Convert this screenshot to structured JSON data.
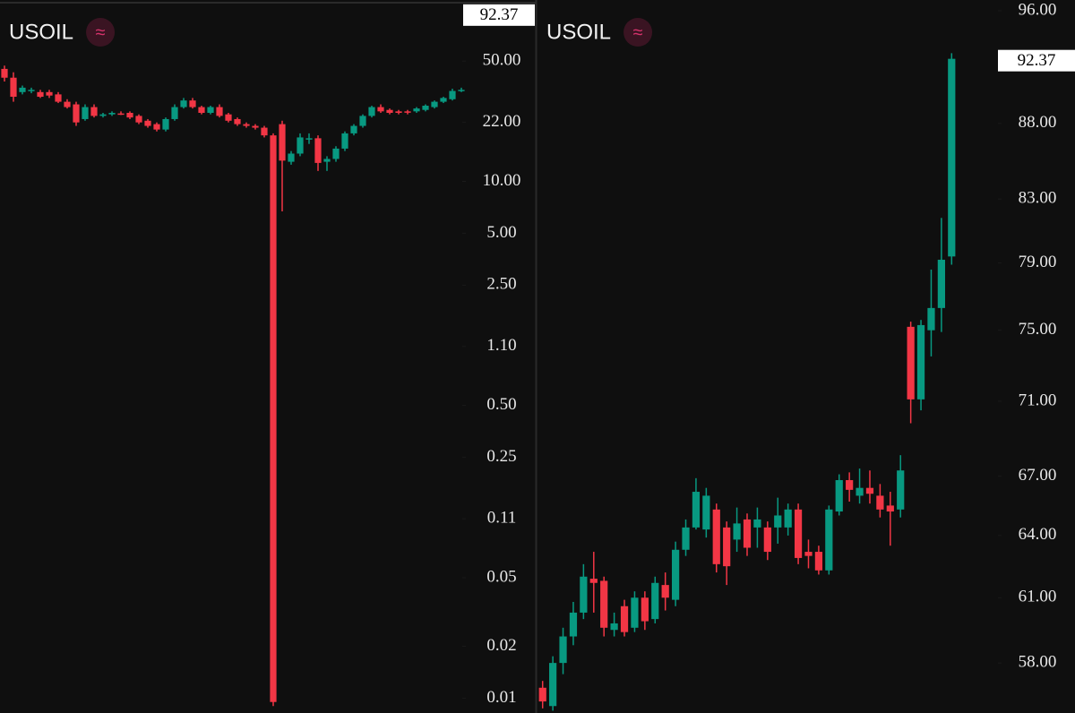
{
  "chart_data": [
    {
      "type": "candlestick",
      "title": "USOIL",
      "icon": "≈",
      "log_scale": true,
      "last_price": 92.37,
      "ylim": [
        0.0082,
        113
      ],
      "yticks": [
        {
          "value": 50,
          "label": "50.00"
        },
        {
          "value": 22,
          "label": "22.00"
        },
        {
          "value": 10,
          "label": "10.00"
        },
        {
          "value": 5,
          "label": "5.00"
        },
        {
          "value": 2.5,
          "label": "2.50"
        },
        {
          "value": 1.1,
          "label": "1.10"
        },
        {
          "value": 0.5,
          "label": "0.50"
        },
        {
          "value": 0.25,
          "label": "0.25"
        },
        {
          "value": 0.11,
          "label": "0.11"
        },
        {
          "value": 0.05,
          "label": "0.05"
        },
        {
          "value": 0.02,
          "label": "0.02"
        },
        {
          "value": 0.01,
          "label": "0.01"
        }
      ],
      "up_color": "#089981",
      "down_color": "#f23645",
      "open": [
        45,
        40,
        33,
        33.5,
        33,
        33,
        32,
        29,
        28,
        23,
        27,
        24,
        24.5,
        24.8,
        25,
        24,
        22.5,
        21.5,
        20,
        23,
        27,
        29.5,
        27,
        25,
        27,
        24.5,
        23,
        21.5,
        21,
        20.5,
        18.5,
        21.5,
        13,
        14.5,
        17.5,
        17.8,
        13,
        13.5,
        15.5,
        19,
        21,
        24,
        27,
        26,
        25.5,
        25.5,
        25.5,
        26,
        27,
        29,
        30,
        33.5
      ],
      "high": [
        47,
        43,
        36,
        35,
        34,
        34,
        33,
        30,
        29,
        28,
        28,
        25,
        25.5,
        25.5,
        25.5,
        24.5,
        23,
        22,
        23.5,
        28,
        30.5,
        30.5,
        27.5,
        27.5,
        28,
        25,
        23.5,
        22,
        21.5,
        21,
        19,
        22.5,
        15,
        19,
        19,
        18.5,
        14,
        16,
        19.5,
        21.5,
        24.5,
        27.5,
        28,
        26.5,
        26,
        26,
        27,
        28,
        29.5,
        31,
        34.5,
        35
      ],
      "low": [
        38,
        29,
        32,
        32.5,
        30.5,
        30.5,
        28.5,
        26.5,
        21,
        22.5,
        23.5,
        23.5,
        24,
        24.3,
        23,
        21.5,
        20.5,
        19.5,
        19.5,
        22.5,
        26.5,
        26.5,
        24.5,
        24.5,
        23.5,
        22,
        21,
        20.5,
        20,
        18,
        0.009,
        6.7,
        12.5,
        14,
        16.5,
        11.5,
        11.5,
        13,
        15,
        18.5,
        20.5,
        23.5,
        25,
        24.5,
        24.5,
        24.5,
        25,
        25.5,
        26.5,
        28.5,
        29.5,
        33
      ],
      "close": [
        40,
        31,
        35,
        34,
        31,
        31.5,
        29,
        27,
        22,
        27,
        24,
        24.5,
        25,
        24.6,
        23.5,
        22,
        21,
        20,
        23,
        27,
        29.5,
        27,
        25,
        27,
        24,
        22.5,
        21.5,
        21,
        20.5,
        18.5,
        0.0095,
        13.2,
        14.5,
        18,
        17.8,
        12.8,
        13.5,
        15.5,
        19,
        21,
        24,
        27,
        25.5,
        25,
        25,
        25.2,
        26.5,
        27.5,
        29,
        30.5,
        33.5,
        34
      ]
    },
    {
      "type": "candlestick",
      "title": "USOIL",
      "icon": "≈",
      "log_scale": true,
      "last_price": 92.37,
      "ylim": [
        55.8,
        96.8
      ],
      "yticks": [
        {
          "value": 96,
          "label": "96.00"
        },
        {
          "value": 88,
          "label": "88.00"
        },
        {
          "value": 83,
          "label": "83.00"
        },
        {
          "value": 79,
          "label": "79.00"
        },
        {
          "value": 75,
          "label": "75.00"
        },
        {
          "value": 71,
          "label": "71.00"
        },
        {
          "value": 67,
          "label": "67.00"
        },
        {
          "value": 64,
          "label": "64.00"
        },
        {
          "value": 61,
          "label": "61.00"
        },
        {
          "value": 58,
          "label": "58.00"
        }
      ],
      "up_color": "#089981",
      "down_color": "#f23645",
      "open": [
        56.9,
        56.1,
        58.0,
        59.2,
        60.3,
        61.9,
        61.8,
        59.5,
        60.6,
        59.6,
        61.0,
        60.0,
        61.6,
        60.9,
        63.3,
        64.4,
        64.3,
        65.3,
        64.4,
        63.8,
        64.8,
        64.4,
        64.4,
        64.4,
        64.4,
        65.3,
        63.2,
        63.2,
        62.3,
        65.2,
        66.8,
        66.0,
        66.4,
        66.0,
        65.5,
        65.3,
        75.2,
        71.1,
        75.0,
        76.3,
        79.4
      ],
      "high": [
        57.2,
        58.3,
        59.6,
        60.8,
        62.6,
        63.2,
        62.0,
        60.3,
        60.9,
        61.3,
        61.3,
        62.0,
        62.2,
        63.7,
        64.8,
        66.9,
        66.4,
        65.6,
        64.7,
        65.4,
        65.1,
        65.4,
        64.7,
        65.9,
        65.6,
        65.6,
        63.8,
        63.5,
        65.5,
        67.1,
        67.2,
        67.4,
        67.3,
        66.6,
        66.2,
        68.1,
        75.5,
        75.6,
        78.6,
        81.8,
        92.9
      ],
      "low": [
        56.0,
        55.9,
        57.5,
        58.8,
        60.0,
        60.3,
        59.2,
        59.2,
        59.2,
        59.4,
        59.5,
        59.8,
        60.4,
        60.6,
        63.0,
        64.3,
        63.9,
        62.2,
        61.6,
        63.2,
        63.0,
        63.4,
        62.8,
        63.6,
        64.0,
        62.6,
        62.4,
        62.1,
        62.1,
        65.0,
        65.7,
        65.6,
        65.6,
        64.9,
        63.5,
        64.9,
        69.8,
        70.5,
        73.5,
        74.9,
        78.9
      ],
      "close": [
        56.3,
        58.0,
        59.2,
        60.3,
        62.0,
        61.7,
        59.6,
        59.8,
        59.4,
        61.0,
        59.9,
        61.7,
        61.0,
        63.3,
        64.4,
        66.2,
        66.0,
        62.6,
        62.5,
        64.6,
        63.4,
        64.8,
        63.2,
        65.0,
        65.3,
        62.9,
        63.0,
        62.3,
        65.3,
        66.8,
        66.3,
        66.4,
        66.1,
        65.3,
        65.2,
        67.3,
        71.1,
        75.3,
        76.3,
        79.2,
        92.5
      ]
    }
  ]
}
